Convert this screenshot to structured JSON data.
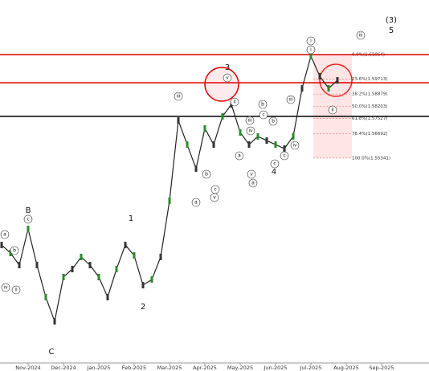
{
  "chart_data": {
    "type": "line",
    "categories": [
      null,
      null,
      null,
      "Nov-2024",
      null,
      null,
      null,
      "Dec-2024",
      null,
      null,
      null,
      "Jan-2025",
      null,
      null,
      null,
      "Feb-2025",
      null,
      null,
      null,
      "Mar-2025",
      null,
      null,
      null,
      "Apr-2025",
      null,
      null,
      null,
      "May-2025",
      null,
      null,
      null,
      "Jun-2025",
      null,
      null,
      null,
      "Jul-2025",
      null,
      null,
      null,
      "Aug-2025",
      null,
      null,
      null,
      "Sep-2025",
      null
    ],
    "series": [
      {
        "color": "#222222",
        "values": [
          1.5054,
          1.501,
          1.4943,
          1.5143,
          1.4943,
          1.4766,
          1.4632,
          1.4877,
          1.4921,
          1.4988,
          1.4943,
          1.4877,
          1.4766,
          1.4921,
          1.5054,
          1.4996,
          1.4832,
          1.4863,
          1.4988,
          1.5298,
          1.5742,
          1.5609,
          1.5476,
          1.5698,
          1.5609,
          1.5765,
          1.5831,
          1.5676,
          1.5609,
          1.5654,
          1.5631,
          1.5609,
          1.5587,
          1.5654,
          1.592,
          1.6098,
          1.5987,
          1.592,
          1.5964,
          null,
          null,
          null,
          null,
          null,
          null
        ]
      }
    ],
    "ylim": [
      1.4402,
      1.6408
    ],
    "levels": [
      {
        "value": 1.6106,
        "color": "#e00000"
      },
      {
        "value": 1.5951,
        "color": "#e00000"
      },
      {
        "value": 1.5765,
        "color": "#000000"
      }
    ],
    "fibonacci": [
      {
        "label": "0.0%(1.61064)",
        "value": 1.61064
      },
      {
        "label": "23.6%(1.59713)",
        "value": 1.59713
      },
      {
        "label": "38.2%(1.58879)",
        "value": 1.58879
      },
      {
        "label": "50.0%(1.58203)",
        "value": 1.58203
      },
      {
        "label": "61.8%(1.57527)",
        "value": 1.57527
      },
      {
        "label": "76.4%(1.56692)",
        "value": 1.56692
      },
      {
        "label": "100.0%(1.55341)",
        "value": 1.55341
      }
    ],
    "wave_labels": [
      "(3)",
      "5",
      "B",
      "C",
      "1",
      "2",
      "3",
      "4"
    ],
    "circled_labels": [
      "iii",
      "i",
      "v",
      "iii",
      "a",
      "b",
      "c",
      "ii",
      "iv",
      "a",
      "b",
      "c",
      "v",
      "ii",
      "iii",
      "iv",
      "b",
      "c",
      "v",
      "a",
      "b",
      "c",
      "ii",
      "i",
      "iii",
      "iv",
      "c",
      "a"
    ]
  }
}
